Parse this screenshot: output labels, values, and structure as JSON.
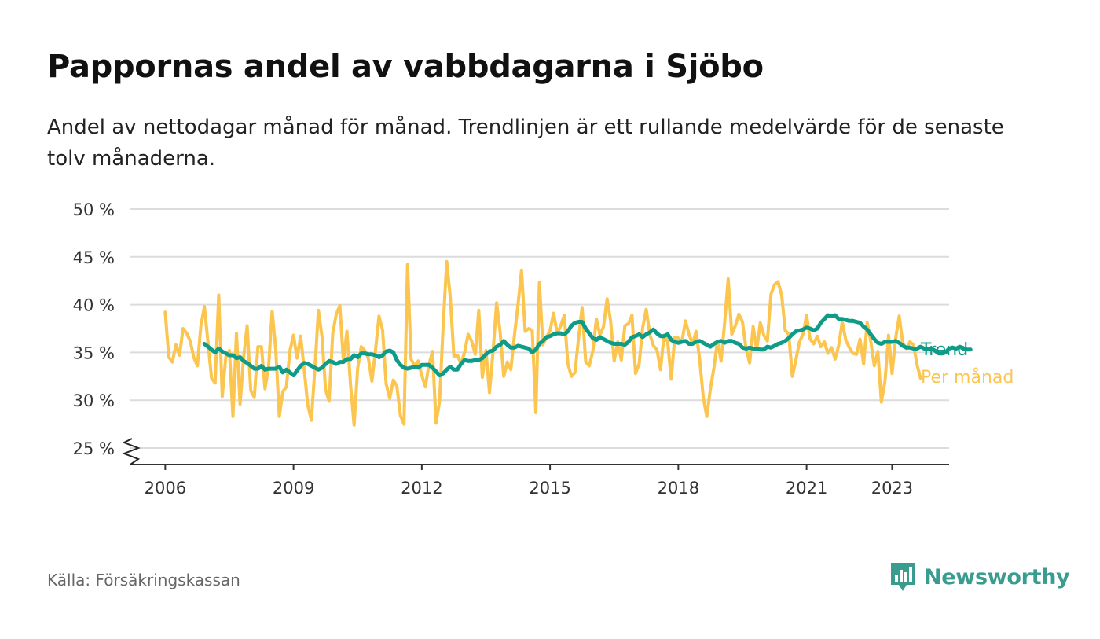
{
  "title": "Pappornas andel av vabbdagarna i Sjöbo",
  "subtitle": "Andel av nettodagar månad för månad. Trendlinjen är ett rullande medelvärde för de senaste tolv månaderna.",
  "source": "Källa: Försäkringskassan",
  "brand": {
    "name": "Newsworthy",
    "icon": "newsworthy-logo-icon",
    "color": "#3a9b8f"
  },
  "colors": {
    "monthly": "#fbc54f",
    "trend": "#0e9b87",
    "grid": "#dcdcdc",
    "axis": "#333333"
  },
  "chart_data": {
    "type": "line",
    "x_start": "2006-01",
    "xlim": [
      "2005-03",
      "2024-05"
    ],
    "ylim": [
      25,
      50
    ],
    "y_ticks": [
      25,
      30,
      35,
      40,
      45,
      50
    ],
    "y_tick_labels": [
      "25 %",
      "30 %",
      "35 %",
      "40 %",
      "45 %",
      "50 %"
    ],
    "x_ticks": [
      "2006-01",
      "2009-01",
      "2012-01",
      "2015-01",
      "2018-01",
      "2021-01",
      "2023-01"
    ],
    "x_tick_labels": [
      "2006",
      "2009",
      "2012",
      "2015",
      "2018",
      "2021",
      "2023"
    ],
    "y_axis_break": true,
    "grid": true,
    "series": [
      {
        "name": "Per månad",
        "color": "#fbc54f",
        "values": [
          39.2,
          34.5,
          34.0,
          35.8,
          34.7,
          37.5,
          37.0,
          36.2,
          34.5,
          33.6,
          37.8,
          39.8,
          36.0,
          32.3,
          31.8,
          41.0,
          30.4,
          34.5,
          35.2,
          28.3,
          37.0,
          29.6,
          34.5,
          37.8,
          31.0,
          30.3,
          35.6,
          35.6,
          31.2,
          33.5,
          39.3,
          35.4,
          28.3,
          30.9,
          31.4,
          35.2,
          36.8,
          34.4,
          36.7,
          33.2,
          29.5,
          27.9,
          33.3,
          39.4,
          36.6,
          31.1,
          29.9,
          37.0,
          39.0,
          39.9,
          34.1,
          37.2,
          31.6,
          27.4,
          33.3,
          35.6,
          35.2,
          34.4,
          32.0,
          35.2,
          38.8,
          37.3,
          31.7,
          30.2,
          32.1,
          31.5,
          28.4,
          27.5,
          44.2,
          34.3,
          33.6,
          34.1,
          32.6,
          31.4,
          33.7,
          35.1,
          27.6,
          29.9,
          37.9,
          44.5,
          40.8,
          34.6,
          34.7,
          33.8,
          35.0,
          36.9,
          36.2,
          34.8,
          39.4,
          32.4,
          35.2,
          30.8,
          35.0,
          40.2,
          37.1,
          32.5,
          34.0,
          33.2,
          36.8,
          40.0,
          43.6,
          37.2,
          37.5,
          37.3,
          28.7,
          42.3,
          35.8,
          36.6,
          37.3,
          39.1,
          37.0,
          37.8,
          38.9,
          33.8,
          32.5,
          32.9,
          36.5,
          39.7,
          34.0,
          33.6,
          35.1,
          38.5,
          36.8,
          37.7,
          40.6,
          38.3,
          34.1,
          36.1,
          34.2,
          37.8,
          38.0,
          38.9,
          32.8,
          33.8,
          37.6,
          39.5,
          36.9,
          35.7,
          35.3,
          33.2,
          36.8,
          36.1,
          32.2,
          36.6,
          36.5,
          36.1,
          38.3,
          36.9,
          35.9,
          37.2,
          34.2,
          30.3,
          28.3,
          31.2,
          33.4,
          36.2,
          34.1,
          38.1,
          42.7,
          36.9,
          37.8,
          39.0,
          38.2,
          35.4,
          33.9,
          37.7,
          35.3,
          38.1,
          36.8,
          36.2,
          41.1,
          42.1,
          42.4,
          41.0,
          37.3,
          36.9,
          32.5,
          34.2,
          36.1,
          36.9,
          38.9,
          36.4,
          35.9,
          36.7,
          35.6,
          36.1,
          34.9,
          35.5,
          34.3,
          35.7,
          38.2,
          36.3,
          35.5,
          34.9,
          34.8,
          36.4,
          33.8,
          38.1,
          36.2,
          33.6,
          35.1,
          29.8,
          32.0,
          36.8,
          32.8,
          36.5,
          38.8,
          36.0,
          35.4,
          36.1,
          35.8,
          33.7,
          32.3
        ]
      },
      {
        "name": "Trend",
        "color": "#0e9b87",
        "start": "2006-12",
        "values": [
          35.9,
          35.6,
          35.3,
          35.0,
          35.4,
          35.1,
          34.9,
          34.7,
          34.7,
          34.4,
          34.5,
          34.1,
          33.9,
          33.6,
          33.3,
          33.3,
          33.6,
          33.2,
          33.3,
          33.3,
          33.3,
          33.5,
          32.9,
          33.2,
          32.9,
          32.6,
          33.1,
          33.6,
          33.9,
          33.8,
          33.6,
          33.4,
          33.2,
          33.4,
          33.8,
          34.1,
          34.0,
          33.8,
          34.0,
          34.0,
          34.3,
          34.3,
          34.7,
          34.5,
          34.9,
          34.9,
          34.8,
          34.8,
          34.7,
          34.5,
          34.7,
          35.1,
          35.2,
          35.0,
          34.2,
          33.7,
          33.4,
          33.3,
          33.4,
          33.5,
          33.4,
          33.7,
          33.7,
          33.7,
          33.4,
          33.0,
          32.6,
          32.8,
          33.2,
          33.5,
          33.2,
          33.2,
          33.8,
          34.2,
          34.1,
          34.1,
          34.2,
          34.2,
          34.4,
          34.8,
          35.1,
          35.2,
          35.6,
          35.8,
          36.2,
          35.8,
          35.5,
          35.5,
          35.7,
          35.6,
          35.5,
          35.4,
          35.0,
          35.3,
          35.9,
          36.2,
          36.6,
          36.7,
          36.9,
          37.0,
          37.0,
          36.9,
          37.2,
          37.8,
          38.1,
          38.2,
          38.2,
          37.5,
          37.0,
          36.5,
          36.3,
          36.6,
          36.4,
          36.2,
          36.0,
          35.9,
          35.9,
          35.9,
          35.8,
          36.1,
          36.6,
          36.7,
          36.9,
          36.6,
          36.9,
          37.1,
          37.4,
          37.0,
          36.7,
          36.7,
          36.9,
          36.3,
          36.1,
          36.0,
          36.1,
          36.2,
          35.9,
          35.9,
          36.1,
          36.2,
          36.0,
          35.8,
          35.6,
          35.9,
          36.1,
          36.2,
          36.0,
          36.2,
          36.2,
          36.0,
          35.9,
          35.5,
          35.4,
          35.5,
          35.4,
          35.4,
          35.3,
          35.3,
          35.6,
          35.5,
          35.7,
          35.9,
          36.0,
          36.2,
          36.5,
          36.9,
          37.2,
          37.3,
          37.4,
          37.6,
          37.5,
          37.3,
          37.5,
          38.1,
          38.5,
          38.9,
          38.8,
          38.9,
          38.5,
          38.5,
          38.4,
          38.3,
          38.3,
          38.2,
          38.1,
          37.7,
          37.4,
          36.9,
          36.4,
          36.0,
          35.9,
          36.1,
          36.1,
          36.1,
          36.2,
          36.0,
          35.7,
          35.5,
          35.5,
          35.4,
          35.4,
          35.6,
          35.4,
          35.4,
          35.4,
          35.2,
          34.9,
          34.9,
          35.0,
          35.4,
          35.5,
          35.4,
          35.6,
          35.4,
          35.3,
          35.3
        ]
      }
    ]
  }
}
